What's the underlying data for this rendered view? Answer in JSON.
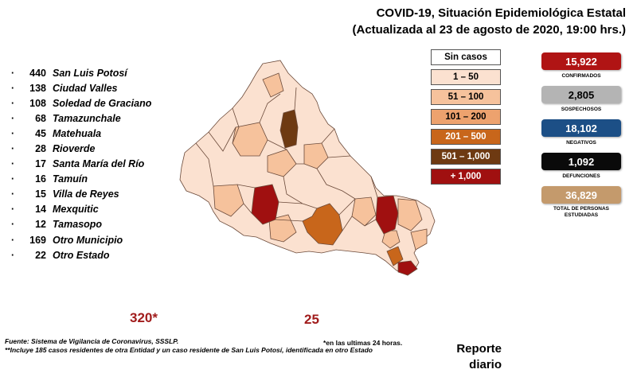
{
  "header": {
    "title_line1": "COVID-19, Situación Epidemiológica Estatal",
    "title_line2": "(Actualizada al 23 de agosto de 2020, 19:00 hrs.)"
  },
  "municipalities": [
    {
      "count": "440",
      "name": "San Luis Potosí"
    },
    {
      "count": "138",
      "name": "Ciudad Valles"
    },
    {
      "count": "108",
      "name": "Soledad de Graciano"
    },
    {
      "count": "68",
      "name": "Tamazunchale"
    },
    {
      "count": "45",
      "name": "Matehuala"
    },
    {
      "count": "28",
      "name": "Rioverde"
    },
    {
      "count": "17",
      "name": "Santa María del Río"
    },
    {
      "count": "16",
      "name": "Tamuín"
    },
    {
      "count": "15",
      "name": "Villa de Reyes"
    },
    {
      "count": "14",
      "name": "Mexquitic"
    },
    {
      "count": "12",
      "name": "Tamasopo"
    },
    {
      "count": "169",
      "name": "Otro Municipio"
    },
    {
      "count": "22",
      "name": "Otro Estado"
    }
  ],
  "legend": [
    {
      "label": "Sin casos",
      "color": "#ffffff",
      "text_color": "#000000"
    },
    {
      "label": "1 – 50",
      "color": "#fbe1d0",
      "text_color": "#000000"
    },
    {
      "label": "51 – 100",
      "color": "#f6c29c",
      "text_color": "#000000"
    },
    {
      "label": "101 – 200",
      "color": "#eda26e",
      "text_color": "#000000"
    },
    {
      "label": "201 – 500",
      "color": "#c8661b",
      "text_color": "#ffffff"
    },
    {
      "label": "501 – 1,000",
      "color": "#6e3a12",
      "text_color": "#ffffff"
    },
    {
      "label": "+ 1,000",
      "color": "#a01010",
      "text_color": "#ffffff"
    }
  ],
  "stats": [
    {
      "value": "15,922",
      "label": "CONFIRMADOS",
      "color": "#b01414",
      "text_color": "#ffffff"
    },
    {
      "value": "2,805",
      "label": "SOSPECHOSOS",
      "color": "#b4b4b4",
      "text_color": "#000000"
    },
    {
      "value": "18,102",
      "label": "NEGATIVOS",
      "color": "#1c4f86",
      "text_color": "#ffffff"
    },
    {
      "value": "1,092",
      "label": "DEFUNCIONES",
      "color": "#0a0a0a",
      "text_color": "#ffffff"
    },
    {
      "value": "36,829",
      "label": "TOTAL DE PERSONAS ESTUDIADAS",
      "color": "#c49a6c",
      "text_color": "#ffffff"
    }
  ],
  "daily": {
    "new_cases": "320*",
    "new_deaths": "25"
  },
  "footer": {
    "source": "Fuente: Sistema de Vigilancia de Coronavirus, SSSLP.",
    "note1": "*en las ultimas 24 horas.",
    "note2": "**Incluye 185 casos residentes de otra Entidad y un caso residente de San Luis Potosí, identificada en otro Estado",
    "report_line1": "Reporte",
    "report_line2": "diario"
  },
  "map": {
    "state": "San Luis Potosí",
    "base_color": "#fbe1d0",
    "region_colors": {
      "light": "#fbe1d0",
      "medium": "#f6c29c",
      "orange": "#c8661b",
      "brown": "#6e3a12",
      "red": "#a01010"
    }
  }
}
